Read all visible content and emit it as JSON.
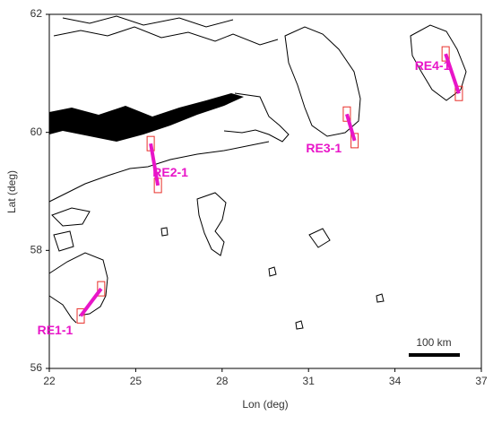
{
  "chart_data": {
    "type": "map",
    "x_label": "Lon (deg)",
    "y_label": "Lat (deg)",
    "xlim": [
      22,
      37
    ],
    "xticks": [
      22,
      25,
      28,
      31,
      34,
      37
    ],
    "ylim": [
      56,
      62
    ],
    "yticks": [
      56,
      58,
      60,
      62
    ],
    "color": "#e815c8",
    "transects": [
      {
        "name": "RE1-1",
        "lon": [
          23.09,
          23.8
        ],
        "lat": [
          56.89,
          57.35
        ]
      },
      {
        "name": "RE2-1",
        "lon": [
          25.52,
          25.77
        ],
        "lat": [
          59.81,
          59.1
        ]
      },
      {
        "name": "RE3-1",
        "lon": [
          32.33,
          32.6
        ],
        "lat": [
          60.31,
          59.86
        ]
      },
      {
        "name": "RE4-1",
        "lon": [
          35.76,
          36.22
        ],
        "lat": [
          61.33,
          60.66
        ]
      }
    ],
    "scale_bar_label": "100 km"
  }
}
